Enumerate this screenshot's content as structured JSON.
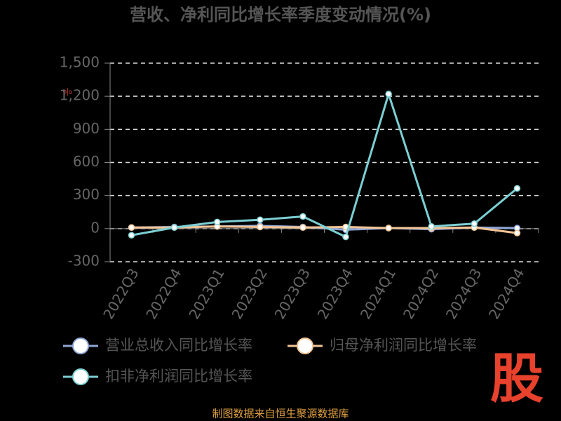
{
  "chart_data": {
    "type": "line",
    "title": "营收、净利同比增长率季度变动情况(%)",
    "y_label": "%",
    "categories": [
      "2022Q3",
      "2022Q4",
      "2023Q1",
      "2023Q2",
      "2023Q3",
      "2023Q4",
      "2024Q1",
      "2024Q2",
      "2024Q3",
      "2024Q4"
    ],
    "series": [
      {
        "name": "营业总收入同比增长率",
        "color": "#8fa6d6",
        "values": [
          10,
          15,
          20,
          25,
          15,
          -10,
          5,
          -5,
          10,
          5
        ]
      },
      {
        "name": "归母净利润同比增长率",
        "color": "#f3c596",
        "values": [
          10,
          10,
          20,
          15,
          10,
          15,
          5,
          5,
          10,
          -40
        ]
      },
      {
        "name": "扣非净利润同比增长率",
        "color": "#7ccfd3",
        "values": [
          -60,
          10,
          60,
          80,
          110,
          -75,
          1220,
          20,
          45,
          365
        ]
      }
    ],
    "ylim": [
      -300,
      1500
    ],
    "yticks": [
      -300,
      0,
      300,
      600,
      900,
      {
        "value": 1200,
        "label": "1,200"
      },
      {
        "value": 1500,
        "label": "1,500"
      }
    ],
    "grid": true,
    "legend": "bottom",
    "source": "制图数据来自恒生聚源数据库",
    "logo": "股"
  }
}
